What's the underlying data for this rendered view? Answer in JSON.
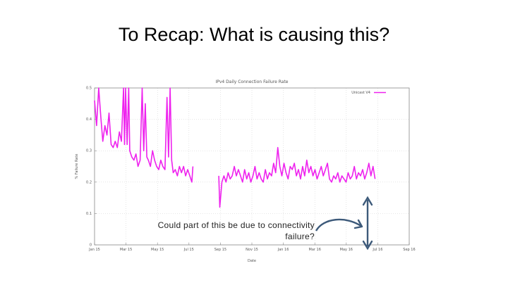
{
  "slide": {
    "title": "To Recap: What is causing this?",
    "annotation": "Could part of this be due to connectivity failure?"
  },
  "colors": {
    "series": "#ee22ee",
    "arrow": "#3d5a7a",
    "axis": "#888888",
    "grid": "#cccccc"
  },
  "chart_data": {
    "type": "line",
    "title": "IPv4 Daily Connection Failure Rate",
    "xlabel": "Date",
    "ylabel": "% Failure Rate",
    "ylim": [
      0,
      0.5
    ],
    "yticks": [
      "0",
      "0.1",
      "0.2",
      "0.3",
      "0.4",
      "0.5"
    ],
    "xticks": [
      "Jan 15",
      "Mar 15",
      "May 15",
      "Jul 15",
      "Sep 15",
      "Nov 15",
      "Jan 16",
      "Mar 16",
      "May 16",
      "Jul 16",
      "Sep 16"
    ],
    "xlim_days": [
      0,
      608
    ],
    "legend_position": "top-right",
    "grid": true,
    "series": [
      {
        "name": "Unicast V4",
        "points": [
          [
            0,
            0.46
          ],
          [
            4,
            0.38
          ],
          [
            8,
            0.51
          ],
          [
            12,
            0.41
          ],
          [
            16,
            0.33
          ],
          [
            20,
            0.38
          ],
          [
            24,
            0.35
          ],
          [
            28,
            0.42
          ],
          [
            32,
            0.32
          ],
          [
            36,
            0.31
          ],
          [
            40,
            0.33
          ],
          [
            44,
            0.31
          ],
          [
            48,
            0.36
          ],
          [
            52,
            0.33
          ],
          [
            56,
            0.5
          ],
          [
            58,
            0.32
          ],
          [
            60,
            0.5
          ],
          [
            63,
            0.32
          ],
          [
            66,
            0.5
          ],
          [
            68,
            0.3
          ],
          [
            72,
            0.28
          ],
          [
            76,
            0.27
          ],
          [
            80,
            0.29
          ],
          [
            84,
            0.25
          ],
          [
            88,
            0.27
          ],
          [
            92,
            0.5
          ],
          [
            95,
            0.3
          ],
          [
            98,
            0.45
          ],
          [
            101,
            0.28
          ],
          [
            104,
            0.27
          ],
          [
            108,
            0.25
          ],
          [
            112,
            0.3
          ],
          [
            116,
            0.27
          ],
          [
            120,
            0.25
          ],
          [
            124,
            0.24
          ],
          [
            128,
            0.27
          ],
          [
            132,
            0.25
          ],
          [
            136,
            0.24
          ],
          [
            140,
            0.47
          ],
          [
            143,
            0.28
          ],
          [
            146,
            0.5
          ],
          [
            149,
            0.27
          ],
          [
            152,
            0.23
          ],
          [
            156,
            0.24
          ],
          [
            160,
            0.22
          ],
          [
            164,
            0.25
          ],
          [
            168,
            0.23
          ],
          [
            172,
            0.25
          ],
          [
            176,
            0.22
          ],
          [
            180,
            0.24
          ],
          [
            184,
            0.22
          ],
          [
            188,
            0.2
          ],
          [
            190,
            0.25
          ],
          [
            240,
            0.22
          ],
          [
            242,
            0.12
          ],
          [
            246,
            0.2
          ],
          [
            250,
            0.22
          ],
          [
            254,
            0.2
          ],
          [
            258,
            0.23
          ],
          [
            262,
            0.21
          ],
          [
            266,
            0.22
          ],
          [
            270,
            0.25
          ],
          [
            274,
            0.22
          ],
          [
            278,
            0.24
          ],
          [
            282,
            0.22
          ],
          [
            286,
            0.2
          ],
          [
            290,
            0.24
          ],
          [
            294,
            0.21
          ],
          [
            298,
            0.23
          ],
          [
            302,
            0.2
          ],
          [
            306,
            0.22
          ],
          [
            310,
            0.25
          ],
          [
            314,
            0.21
          ],
          [
            318,
            0.23
          ],
          [
            322,
            0.21
          ],
          [
            326,
            0.2
          ],
          [
            330,
            0.24
          ],
          [
            334,
            0.21
          ],
          [
            338,
            0.23
          ],
          [
            342,
            0.22
          ],
          [
            346,
            0.26
          ],
          [
            350,
            0.23
          ],
          [
            354,
            0.31
          ],
          [
            358,
            0.25
          ],
          [
            362,
            0.22
          ],
          [
            366,
            0.26
          ],
          [
            370,
            0.23
          ],
          [
            374,
            0.21
          ],
          [
            378,
            0.25
          ],
          [
            382,
            0.24
          ],
          [
            386,
            0.26
          ],
          [
            390,
            0.22
          ],
          [
            394,
            0.24
          ],
          [
            398,
            0.21
          ],
          [
            402,
            0.25
          ],
          [
            406,
            0.22
          ],
          [
            410,
            0.27
          ],
          [
            414,
            0.23
          ],
          [
            418,
            0.25
          ],
          [
            422,
            0.22
          ],
          [
            426,
            0.24
          ],
          [
            430,
            0.21
          ],
          [
            434,
            0.23
          ],
          [
            438,
            0.25
          ],
          [
            442,
            0.22
          ],
          [
            446,
            0.24
          ],
          [
            450,
            0.26
          ],
          [
            454,
            0.21
          ],
          [
            458,
            0.2
          ],
          [
            462,
            0.22
          ],
          [
            466,
            0.21
          ],
          [
            470,
            0.23
          ],
          [
            474,
            0.2
          ],
          [
            478,
            0.22
          ],
          [
            482,
            0.21
          ],
          [
            486,
            0.2
          ],
          [
            490,
            0.23
          ],
          [
            494,
            0.21
          ],
          [
            498,
            0.22
          ],
          [
            502,
            0.25
          ],
          [
            506,
            0.21
          ],
          [
            510,
            0.23
          ],
          [
            514,
            0.22
          ],
          [
            518,
            0.24
          ],
          [
            522,
            0.21
          ],
          [
            526,
            0.23
          ],
          [
            530,
            0.26
          ],
          [
            534,
            0.22
          ],
          [
            538,
            0.25
          ],
          [
            542,
            0.21
          ]
        ]
      }
    ]
  }
}
